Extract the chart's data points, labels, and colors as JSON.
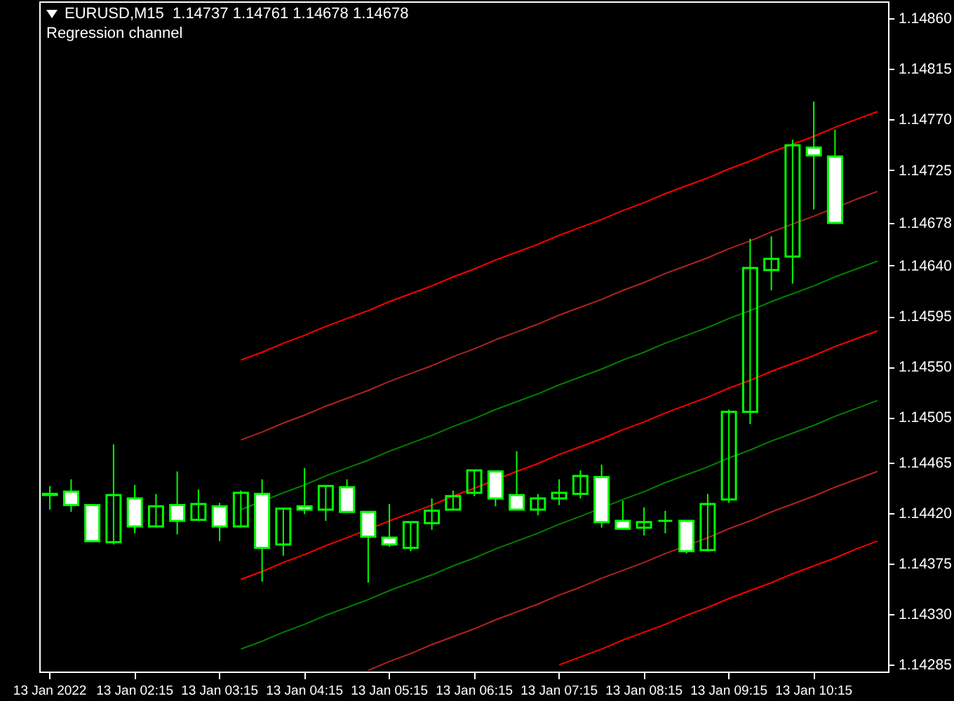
{
  "chart_data": {
    "type": "candlestick",
    "title": "EURUSD,M15  1.14737 1.14761 1.14678 1.14678",
    "subtitle": "Regression channel",
    "color": "#00ff00",
    "categories": [
      "13 Jan 2022",
      null,
      null,
      null,
      "13 Jan 02:15",
      null,
      null,
      null,
      "13 Jan 03:15",
      null,
      null,
      null,
      "13 Jan 04:15",
      null,
      null,
      null,
      "13 Jan 05:15",
      null,
      null,
      null,
      "13 Jan 06:15",
      null,
      null,
      null,
      "13 Jan 07:15",
      null,
      null,
      null,
      "13 Jan 08:15",
      null,
      null,
      null,
      "13 Jan 09:15",
      null,
      null,
      null,
      "13 Jan 10:15",
      null,
      null,
      null
    ],
    "ohlc": [
      [
        1.14436,
        1.14444,
        1.14423,
        1.14437
      ],
      [
        1.14439,
        1.1445,
        1.14421,
        1.14427
      ],
      [
        1.14427,
        1.14427,
        1.14395,
        1.14395
      ],
      [
        1.14394,
        1.14481,
        1.14392,
        1.14436
      ],
      [
        1.14433,
        1.14445,
        1.14402,
        1.14408
      ],
      [
        1.14408,
        1.14437,
        1.14408,
        1.14426
      ],
      [
        1.14427,
        1.14457,
        1.14401,
        1.14413
      ],
      [
        1.14414,
        1.14441,
        1.14413,
        1.14428
      ],
      [
        1.14426,
        1.14429,
        1.14395,
        1.14408
      ],
      [
        1.14408,
        1.1444,
        1.14408,
        1.14438
      ],
      [
        1.14437,
        1.1445,
        1.14359,
        1.14389
      ],
      [
        1.14392,
        1.14424,
        1.14382,
        1.14424
      ],
      [
        1.14426,
        1.1446,
        1.14419,
        1.14423
      ],
      [
        1.14423,
        1.14444,
        1.14413,
        1.14444
      ],
      [
        1.14443,
        1.1445,
        1.14421,
        1.14421
      ],
      [
        1.14421,
        1.14421,
        1.14358,
        1.14399
      ],
      [
        1.14398,
        1.14428,
        1.1439,
        1.14392
      ],
      [
        1.14389,
        1.14412,
        1.14386,
        1.14412
      ],
      [
        1.14411,
        1.14433,
        1.14405,
        1.14422
      ],
      [
        1.14423,
        1.1444,
        1.14423,
        1.14435
      ],
      [
        1.14438,
        1.14458,
        1.14435,
        1.14458
      ],
      [
        1.14457,
        1.14457,
        1.14426,
        1.14433
      ],
      [
        1.14436,
        1.14475,
        1.14423,
        1.14423
      ],
      [
        1.14423,
        1.14437,
        1.14418,
        1.14433
      ],
      [
        1.14433,
        1.1445,
        1.14427,
        1.14438
      ],
      [
        1.14437,
        1.14458,
        1.14433,
        1.14453
      ],
      [
        1.14452,
        1.14463,
        1.14407,
        1.14412
      ],
      [
        1.14413,
        1.14431,
        1.14406,
        1.14406
      ],
      [
        1.14407,
        1.14425,
        1.144,
        1.14412
      ],
      [
        1.14413,
        1.14422,
        1.14402,
        1.14413
      ],
      [
        1.14413,
        1.14413,
        1.14384,
        1.14386
      ],
      [
        1.14387,
        1.14437,
        1.14386,
        1.14428
      ],
      [
        1.14432,
        1.14512,
        1.14429,
        1.1451
      ],
      [
        1.1451,
        1.14664,
        1.14499,
        1.14638
      ],
      [
        1.14636,
        1.14666,
        1.14618,
        1.14646
      ],
      [
        1.14648,
        1.14752,
        1.14624,
        1.14747
      ],
      [
        1.14745,
        1.14786,
        1.1469,
        1.14738
      ],
      [
        1.14737,
        1.14761,
        1.14678,
        1.14678
      ],
      null,
      null
    ],
    "series": [
      {
        "type": "line",
        "color": "#ff0000",
        "values": [
          null,
          null,
          null,
          null,
          null,
          null,
          null,
          null,
          null,
          1.14556,
          1.14563,
          1.14571,
          1.14578,
          1.14586,
          1.14593,
          1.146,
          1.14608,
          1.14615,
          1.14622,
          1.1463,
          1.14637,
          1.14645,
          1.14652,
          1.14659,
          1.14667,
          1.14674,
          1.14681,
          1.14689,
          1.14696,
          1.14704,
          1.14711,
          1.14718,
          1.14726,
          1.14733,
          1.14741,
          1.14748,
          1.14755,
          1.14763,
          1.1477,
          1.14777
        ]
      },
      {
        "type": "line",
        "color": "#b22222",
        "values": [
          null,
          null,
          null,
          null,
          null,
          null,
          null,
          null,
          null,
          1.14485,
          1.14492,
          1.145,
          1.14507,
          1.14515,
          1.14522,
          1.14529,
          1.14537,
          1.14544,
          1.14551,
          1.14559,
          1.14566,
          1.14574,
          1.14581,
          1.14588,
          1.14596,
          1.14603,
          1.1461,
          1.14618,
          1.14625,
          1.14633,
          1.1464,
          1.14647,
          1.14655,
          1.14662,
          1.1467,
          1.14677,
          1.14684,
          null,
          1.14699,
          1.14706
        ]
      },
      {
        "type": "line",
        "color": "#008000",
        "values": [
          null,
          null,
          null,
          null,
          null,
          null,
          null,
          null,
          null,
          1.14423,
          null,
          1.14438,
          1.14445,
          1.14453,
          1.1446,
          1.14467,
          1.14475,
          1.14482,
          1.14489,
          1.14497,
          1.14504,
          1.14512,
          1.14519,
          1.14526,
          1.14534,
          1.14541,
          1.14548,
          1.14556,
          1.14563,
          1.14571,
          1.14578,
          1.14585,
          1.14593,
          1.146,
          1.14608,
          1.14615,
          1.14622,
          1.1463,
          1.14637,
          1.14644
        ]
      },
      {
        "type": "line",
        "color": "#ff0000",
        "values": [
          null,
          null,
          null,
          null,
          null,
          null,
          null,
          null,
          null,
          1.14361,
          1.14368,
          1.14376,
          1.14383,
          1.14391,
          1.14398,
          null,
          1.14413,
          1.1442,
          1.14427,
          1.14435,
          1.14442,
          null,
          1.14457,
          1.14464,
          1.14472,
          1.14479,
          1.14486,
          1.14494,
          1.14501,
          1.14509,
          1.14516,
          1.14523,
          1.14531,
          1.14538,
          1.14546,
          1.14553,
          1.1456,
          1.14568,
          1.14575,
          1.14582
        ]
      },
      {
        "type": "line",
        "color": "#008000",
        "values": [
          null,
          null,
          null,
          null,
          null,
          null,
          null,
          null,
          null,
          1.14299,
          1.14306,
          1.14314,
          1.14321,
          1.14329,
          1.14336,
          1.14343,
          1.14351,
          1.14358,
          1.14365,
          1.14373,
          1.1438,
          1.14388,
          1.14395,
          1.14402,
          1.1441,
          1.14417,
          null,
          1.14432,
          1.14439,
          1.14447,
          1.14454,
          1.14461,
          1.14469,
          1.14476,
          1.14484,
          1.14491,
          1.14498,
          1.14506,
          1.14513,
          1.1452
        ]
      },
      {
        "type": "line",
        "color": "#b22222",
        "values": [
          null,
          null,
          null,
          null,
          null,
          null,
          null,
          null,
          null,
          null,
          null,
          null,
          null,
          null,
          null,
          1.1428,
          1.14288,
          1.14295,
          1.14303,
          1.1431,
          1.14317,
          1.14325,
          1.14332,
          1.14339,
          1.14347,
          1.14354,
          1.14362,
          1.14369,
          1.14376,
          1.14384,
          null,
          1.14398,
          1.14406,
          1.14413,
          1.14421,
          1.14428,
          1.14435,
          1.14443,
          1.1445,
          1.14457
        ]
      },
      {
        "type": "line",
        "color": "#ff0000",
        "values": [
          null,
          null,
          null,
          null,
          null,
          null,
          null,
          null,
          null,
          null,
          null,
          null,
          null,
          null,
          null,
          null,
          null,
          null,
          null,
          null,
          null,
          null,
          null,
          null,
          1.14285,
          1.14292,
          1.14299,
          1.14307,
          1.14314,
          1.14321,
          1.14329,
          1.14336,
          1.14344,
          1.14351,
          1.14358,
          1.14366,
          1.14373,
          1.1438,
          1.14388,
          1.14395
        ]
      }
    ],
    "ylim": [
      1.14279,
      1.14875
    ],
    "yticks": [
      1.14285,
      {
        "value": 1.1433,
        "label": "1.14330"
      },
      1.14375,
      {
        "value": 1.1442,
        "label": "1.14420"
      },
      1.14465,
      1.14505,
      {
        "value": 1.1455,
        "label": "1.14550"
      },
      1.14595,
      {
        "value": 1.1464,
        "label": "1.14640"
      },
      1.14678,
      1.14725,
      {
        "value": 1.1477,
        "label": "1.14770"
      },
      1.14815,
      {
        "value": 1.1486,
        "label": "1.14860"
      }
    ]
  }
}
